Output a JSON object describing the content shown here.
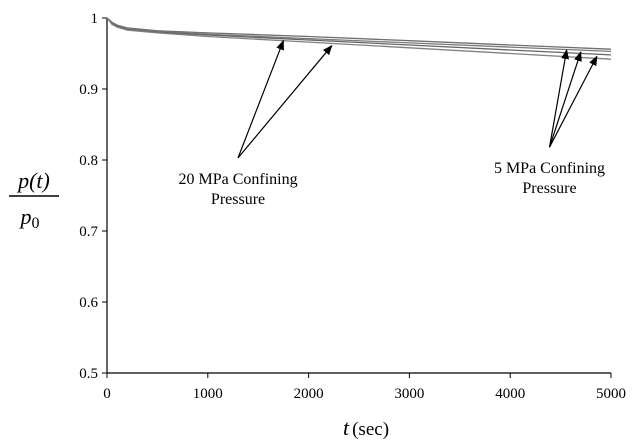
{
  "chart_data": {
    "type": "line",
    "xlim": [
      0,
      5000
    ],
    "ylim": [
      0.5,
      1
    ],
    "x_ticks": [
      "0",
      "1000",
      "2000",
      "3000",
      "4000",
      "5000"
    ],
    "y_ticks": [
      "0.5",
      "0.6",
      "0.7",
      "0.8",
      "0.9",
      "1"
    ],
    "xlabel": {
      "var": "t",
      "unit": "sec"
    },
    "ylabel": {
      "numerator": "p(t)",
      "denominator_base": "p",
      "denominator_sub": "0"
    },
    "grid": false,
    "series": [
      {
        "x": [
          0,
          50,
          100,
          200,
          500,
          1000,
          2000,
          3000,
          4000,
          5000
        ],
        "y": [
          1.0,
          0.994,
          0.99,
          0.986,
          0.982,
          0.979,
          0.974,
          0.968,
          0.962,
          0.956
        ]
      },
      {
        "x": [
          0,
          50,
          100,
          200,
          500,
          1000,
          2000,
          3000,
          4000,
          5000
        ],
        "y": [
          1.0,
          0.993,
          0.989,
          0.985,
          0.981,
          0.977,
          0.971,
          0.965,
          0.959,
          0.953
        ]
      },
      {
        "x": [
          0,
          50,
          100,
          200,
          500,
          1000,
          2000,
          3000,
          4000,
          5000
        ],
        "y": [
          1.0,
          0.992,
          0.988,
          0.984,
          0.98,
          0.976,
          0.969,
          0.962,
          0.955,
          0.948
        ]
      },
      {
        "x": [
          0,
          50,
          100,
          200,
          500,
          1000,
          2000,
          3000,
          4000,
          5000
        ],
        "y": [
          1.0,
          0.991,
          0.987,
          0.983,
          0.979,
          0.974,
          0.966,
          0.958,
          0.95,
          0.942
        ]
      }
    ],
    "annotations": [
      {
        "lines": [
          "20 MPa Confining",
          "Pressure"
        ],
        "arrow_from": [
          1300,
          0.803
        ],
        "arrow_to": [
          [
            1750,
            0.968
          ],
          [
            2230,
            0.961
          ]
        ]
      },
      {
        "lines": [
          "5 MPa Confining",
          "Pressure"
        ],
        "arrow_from": [
          4390,
          0.818
        ],
        "arrow_to": [
          [
            4560,
            0.955
          ],
          [
            4700,
            0.952
          ],
          [
            4860,
            0.946
          ]
        ]
      }
    ]
  }
}
